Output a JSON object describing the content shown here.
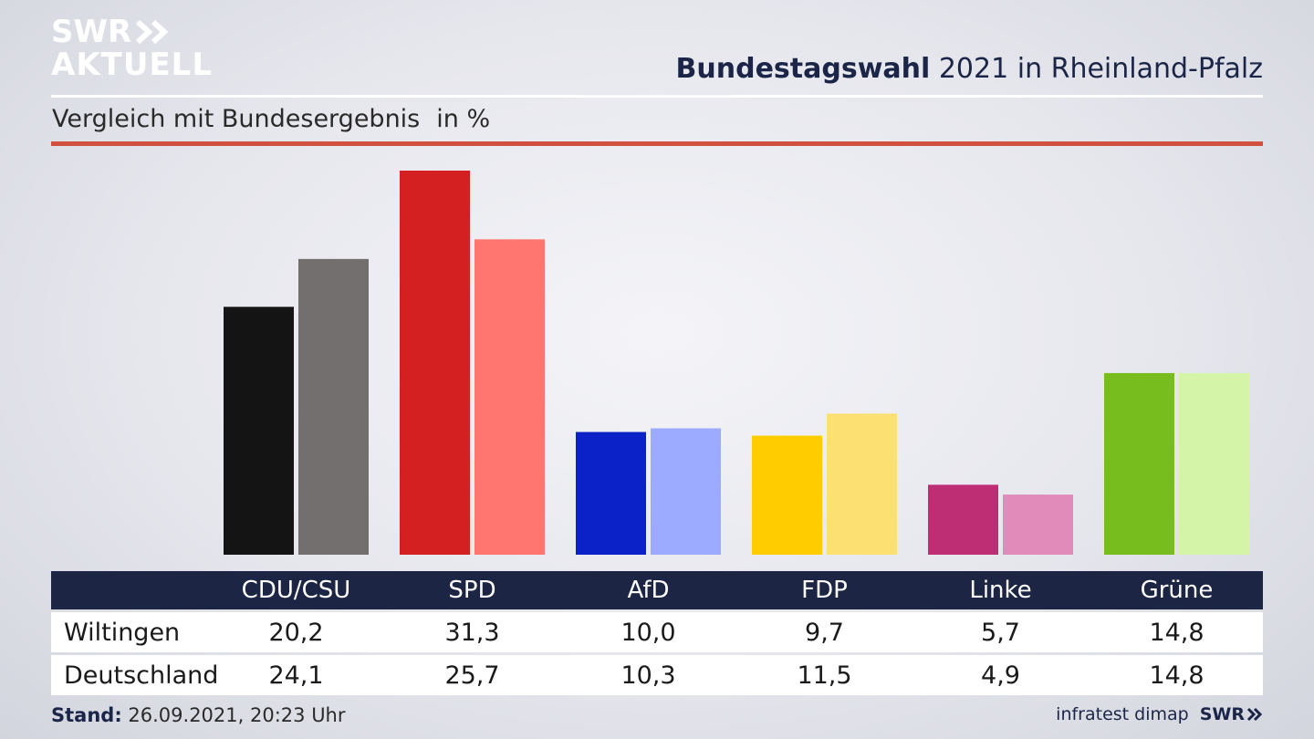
{
  "brand": {
    "logo_line1": "SWR",
    "logo_line2": "AKTUELL",
    "footer_brand": "SWR",
    "source": "infratest dimap"
  },
  "header": {
    "title_bold": "Bundestagswahl",
    "title_rest": "2021 in Rheinland-Pfalz",
    "subtitle": "Vergleich mit Bundesergebnis",
    "unit": "in %"
  },
  "footer": {
    "stand_label": "Stand:",
    "stand_value": "26.09.2021, 20:23 Uhr"
  },
  "chart_data": {
    "type": "bar",
    "categories": [
      "CDU/CSU",
      "SPD",
      "AfD",
      "FDP",
      "Linke",
      "Grüne"
    ],
    "series": [
      {
        "name": "Wiltingen",
        "values": [
          20.2,
          31.3,
          10.0,
          9.7,
          5.7,
          14.8
        ],
        "labels": [
          "20,2",
          "31,3",
          "10,0",
          "9,7",
          "5,7",
          "14,8"
        ]
      },
      {
        "name": "Deutschland",
        "values": [
          24.1,
          25.7,
          10.3,
          11.5,
          4.9,
          14.8
        ],
        "labels": [
          "24,1",
          "25,7",
          "10,3",
          "11,5",
          "4,9",
          "14,8"
        ]
      }
    ],
    "colors": {
      "Wiltingen": [
        "#141414",
        "#d42020",
        "#0a22c8",
        "#ffcc00",
        "#bd2e74",
        "#78bd1e"
      ],
      "Deutschland": [
        "#736f6e",
        "#ff7570",
        "#9cabff",
        "#fde072",
        "#e08bba",
        "#d4f5a8"
      ]
    },
    "ylim": [
      0,
      31.3
    ],
    "grid": false,
    "legend": "table below chart"
  }
}
